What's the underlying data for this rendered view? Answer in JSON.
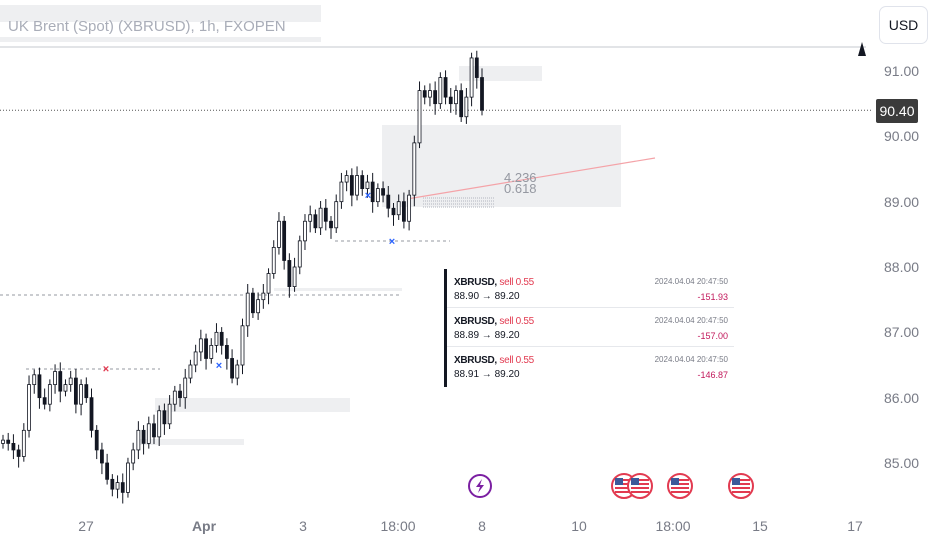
{
  "symbol": {
    "title": "UK Brent (Spot) (XBRUSD), 1h, FXOPEN"
  },
  "currency_button": {
    "label": "USD"
  },
  "current_price": {
    "value": "90.40",
    "level": 90.4
  },
  "price_axis": {
    "ticks": [
      {
        "label": "91.00",
        "value": 91.0
      },
      {
        "label": "90.00",
        "value": 90.0
      },
      {
        "label": "89.00",
        "value": 89.0
      },
      {
        "label": "88.00",
        "value": 88.0
      },
      {
        "label": "87.00",
        "value": 87.0
      },
      {
        "label": "86.00",
        "value": 86.0
      },
      {
        "label": "85.00",
        "value": 85.0
      }
    ]
  },
  "time_axis": {
    "ticks": [
      "27",
      "Apr",
      "3",
      "18:00",
      "8",
      "10",
      "18:00",
      "15",
      "17"
    ]
  },
  "fib_labels": {
    "upper": "4.236",
    "lower": "0.618"
  },
  "trades": [
    {
      "symbol": "XBRUSD,",
      "side": "sell 0.55",
      "prices": "88.90 → 89.20",
      "time": "2024.04.04 20:47:50",
      "pnl": "-151.93"
    },
    {
      "symbol": "XBRUSD,",
      "side": "sell 0.55",
      "prices": "88.89 → 89.20",
      "time": "2024.04.04 20:47:50",
      "pnl": "-157.00"
    },
    {
      "symbol": "XBRUSD,",
      "side": "sell 0.55",
      "prices": "88.91 → 89.20",
      "time": "2024.04.04 20:47:50",
      "pnl": "-146.87"
    }
  ],
  "events": [
    {
      "icon": "lightning-icon",
      "color": "#7b1fa2"
    },
    {
      "icon": "us-flag-icon"
    },
    {
      "icon": "us-flag-icon"
    },
    {
      "icon": "us-flag-icon"
    },
    {
      "icon": "us-flag-icon"
    }
  ],
  "colors": {
    "up": "#131722",
    "down": "#131722",
    "sell_text": "#e23a50",
    "pnl": "#c2185b",
    "trendline": "#f4a3a8",
    "marker_sell": "#e23a50",
    "marker_buy": "#2962ff"
  },
  "chart_data": {
    "type": "candlestick",
    "ylim": [
      84.55,
      91.6
    ],
    "closes": [
      85.35,
      85.3,
      85.2,
      85.1,
      85.5,
      86.2,
      86.35,
      86.0,
      85.9,
      86.2,
      86.4,
      86.1,
      86.2,
      86.3,
      85.9,
      86.2,
      86.0,
      85.5,
      85.2,
      85.0,
      84.75,
      84.6,
      84.7,
      84.55,
      85.0,
      85.2,
      85.5,
      85.3,
      85.6,
      85.4,
      85.8,
      85.6,
      85.9,
      86.1,
      86.0,
      86.3,
      86.5,
      86.7,
      86.9,
      86.6,
      86.8,
      87.0,
      86.8,
      86.6,
      86.3,
      86.5,
      87.1,
      87.6,
      87.3,
      87.5,
      87.6,
      87.9,
      88.3,
      88.7,
      88.1,
      87.7,
      88.0,
      88.4,
      88.7,
      88.8,
      88.6,
      88.9,
      88.7,
      88.6,
      89.0,
      89.3,
      89.4,
      89.1,
      89.4,
      89.2,
      89.3,
      89.0,
      89.2,
      89.1,
      88.9,
      88.8,
      89.0,
      88.7,
      89.1,
      89.9,
      90.7,
      90.6,
      90.7,
      90.5,
      90.9,
      90.6,
      90.5,
      90.7,
      90.3,
      90.6,
      91.2,
      90.9,
      90.4
    ],
    "markers": [
      {
        "value": 86.45,
        "type": "sell"
      },
      {
        "value": 86.5,
        "type": "buy"
      },
      {
        "value": 89.1,
        "type": "buy"
      },
      {
        "value": 88.4,
        "type": "buy"
      }
    ]
  }
}
